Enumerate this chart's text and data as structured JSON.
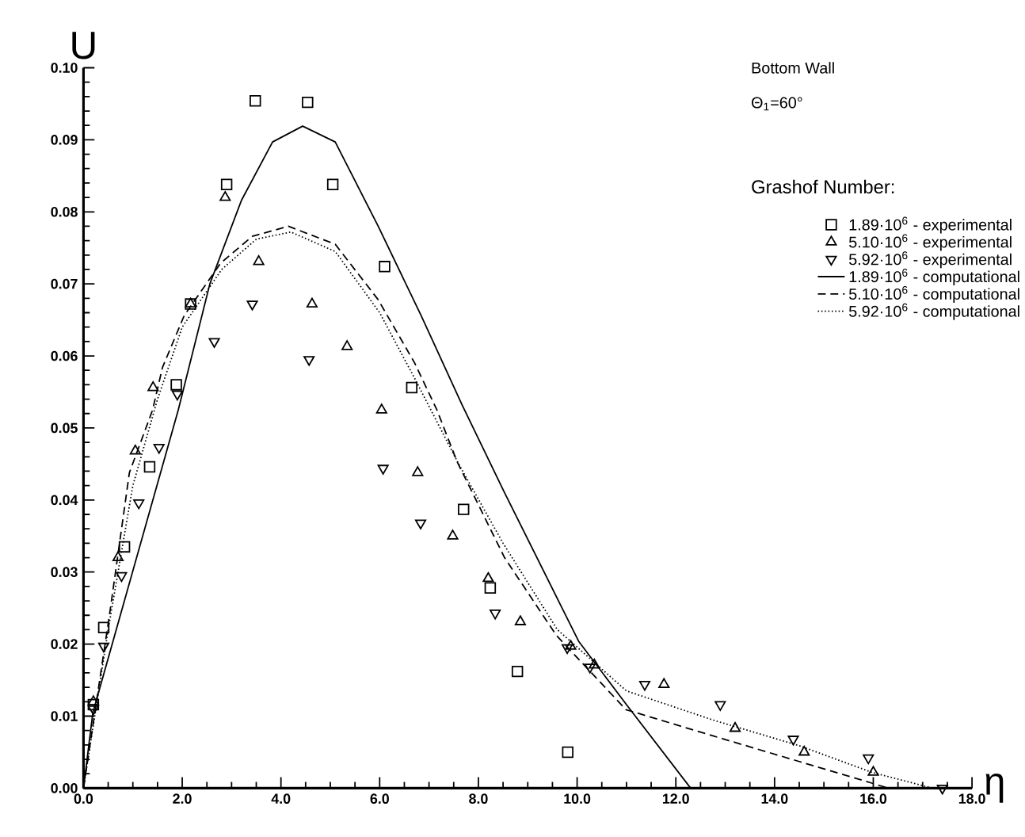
{
  "chart_data": {
    "type": "scatter",
    "xlabel": "η",
    "ylabel": "U",
    "legend_title": "Grashof Number:",
    "annotations": [
      "Bottom Wall",
      "Θ$_{1}$=60°"
    ],
    "xlim": [
      0,
      18
    ],
    "ylim": [
      0,
      0.1
    ],
    "xticks": [
      {
        "value": 0,
        "label": "0.0"
      },
      {
        "value": 2,
        "label": "2.0"
      },
      {
        "value": 4,
        "label": "4.0"
      },
      {
        "value": 6,
        "label": "6.0"
      },
      {
        "value": 8,
        "label": "8.0"
      },
      {
        "value": 10,
        "label": "10.0"
      },
      {
        "value": 12,
        "label": "12.0"
      },
      {
        "value": 14,
        "label": "14.0"
      },
      {
        "value": 16,
        "label": "16.0"
      },
      {
        "value": 18,
        "label": "18.0"
      }
    ],
    "yticks": [
      {
        "value": 0,
        "label": "0.00"
      },
      {
        "value": 0.01,
        "label": "0.01"
      },
      {
        "value": 0.02,
        "label": "0.02"
      },
      {
        "value": 0.03,
        "label": "0.03"
      },
      {
        "value": 0.04,
        "label": "0.04"
      },
      {
        "value": 0.05,
        "label": "0.05"
      },
      {
        "value": 0.06,
        "label": "0.06"
      },
      {
        "value": 0.07,
        "label": "0.07"
      },
      {
        "value": 0.08,
        "label": "0.08"
      },
      {
        "value": 0.09,
        "label": "0.09"
      },
      {
        "value": 0.1,
        "label": "0.10"
      }
    ],
    "legend": "top right",
    "series": [
      {
        "name": "1.89·10$^{6}$ - experimental",
        "marker": "square",
        "color": "#000000",
        "x": [
          0.2,
          0.41,
          0.83,
          1.34,
          1.88,
          2.17,
          2.9,
          3.48,
          4.54,
          5.05,
          6.1,
          6.65,
          7.7,
          8.24,
          8.79,
          9.81
        ],
        "values": [
          0.0116,
          0.0223,
          0.0335,
          0.0446,
          0.056,
          0.0672,
          0.0838,
          0.0954,
          0.0952,
          0.0838,
          0.0724,
          0.0556,
          0.0387,
          0.0278,
          0.0162,
          0.005
        ]
      },
      {
        "name": "5.10·10$^{6}$ - experimental",
        "marker": "triangle",
        "color": "#000000",
        "x": [
          0.2,
          0.7,
          1.05,
          1.41,
          2.17,
          2.87,
          3.55,
          4.63,
          5.34,
          6.04,
          6.77,
          7.48,
          8.2,
          8.85,
          9.87,
          10.35,
          11.76,
          13.2,
          14.6,
          16.0
        ],
        "values": [
          0.012,
          0.032,
          0.0468,
          0.0556,
          0.0672,
          0.082,
          0.0731,
          0.0672,
          0.0613,
          0.0525,
          0.0438,
          0.035,
          0.0291,
          0.0231,
          0.0197,
          0.0171,
          0.0144,
          0.0083,
          0.005,
          0.0022
        ]
      },
      {
        "name": "5.92·10$^{6}$ - experimental",
        "marker": "triangle down",
        "color": "#000000",
        "x": [
          0.2,
          0.41,
          0.77,
          1.12,
          1.53,
          1.9,
          2.65,
          3.42,
          4.57,
          6.07,
          6.83,
          8.34,
          9.8,
          10.26,
          11.37,
          12.9,
          14.38,
          15.9,
          17.4
        ],
        "values": [
          0.011,
          0.0197,
          0.0295,
          0.0396,
          0.0473,
          0.0547,
          0.062,
          0.0672,
          0.0595,
          0.0444,
          0.0368,
          0.0243,
          0.0195,
          0.0168,
          0.0144,
          0.0116,
          0.0068,
          0.0042,
          0.0
        ]
      },
      {
        "name": "1.89·10$^{6}$ - computational",
        "type": "line",
        "line_style": "solid",
        "color": "#000000",
        "x": [
          0,
          0.19,
          1.92,
          2.56,
          3.2,
          3.83,
          4.44,
          5.1,
          5.97,
          6.84,
          7.67,
          8.53,
          10.03,
          11.0,
          12.3
        ],
        "values": [
          0,
          0.0105,
          0.0525,
          0.07,
          0.0816,
          0.0897,
          0.0919,
          0.0897,
          0.078,
          0.0656,
          0.0532,
          0.041,
          0.0204,
          0.0116,
          0
        ]
      },
      {
        "name": "5.10·10$^{6}$ - computational",
        "type": "line",
        "line_style": "dashed",
        "color": "#000000",
        "x": [
          0,
          0.54,
          0.93,
          1.4,
          1.6,
          2.04,
          2.78,
          3.42,
          4.15,
          5.1,
          5.97,
          6.71,
          7.16,
          7.57,
          8.53,
          9.58,
          10.99,
          12.78,
          14.5,
          15.97,
          16.3
        ],
        "values": [
          0,
          0.0247,
          0.0438,
          0.0525,
          0.0584,
          0.0656,
          0.0729,
          0.0766,
          0.078,
          0.0755,
          0.0678,
          0.059,
          0.0525,
          0.0453,
          0.032,
          0.0212,
          0.0109,
          0.0072,
          0.0037,
          0.0007,
          0
        ]
      },
      {
        "name": "5.92·10$^{6}$ - computational",
        "type": "line",
        "line_style": "dotted",
        "color": "#000000",
        "x": [
          0,
          0.5,
          1.0,
          1.5,
          2.0,
          2.8,
          3.5,
          4.2,
          5.1,
          6.0,
          6.7,
          7.6,
          8.5,
          9.6,
          11.0,
          12.78,
          14.5,
          15.97,
          17.2
        ],
        "values": [
          0,
          0.022,
          0.042,
          0.054,
          0.064,
          0.072,
          0.0762,
          0.0772,
          0.0745,
          0.066,
          0.057,
          0.045,
          0.034,
          0.022,
          0.0135,
          0.0094,
          0.0059,
          0.0022,
          0
        ]
      }
    ]
  }
}
